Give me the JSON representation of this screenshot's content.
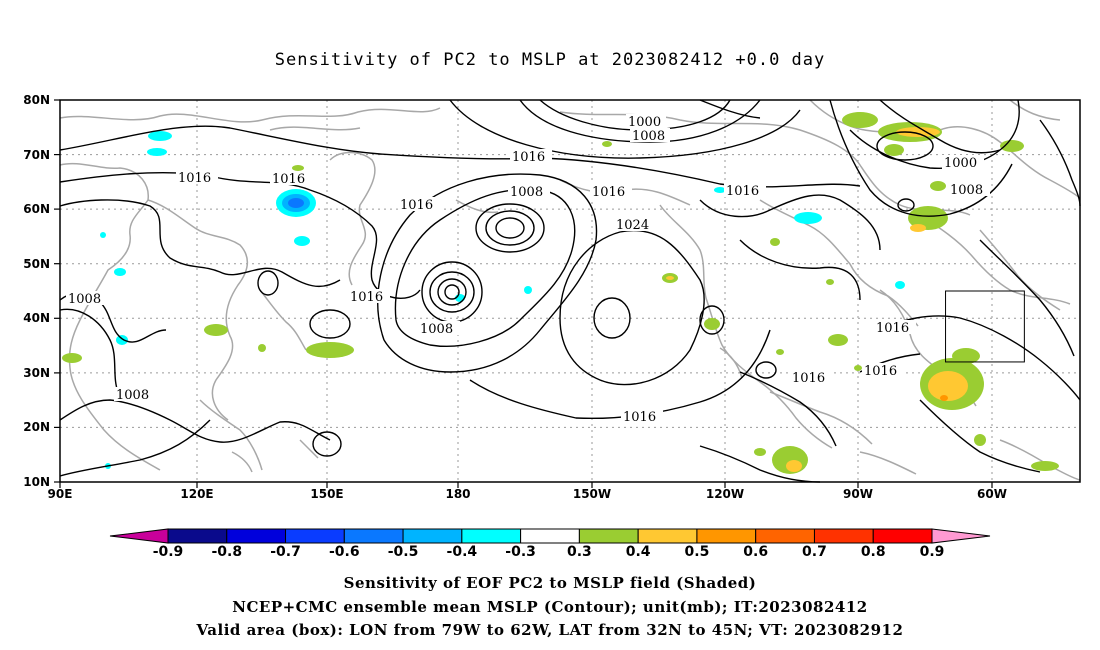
{
  "title": "Sensitivity of PC2 to MSLP at 2023082412 +0.0 day",
  "lat_labels": [
    "80N",
    "70N",
    "60N",
    "50N",
    "40N",
    "30N",
    "20N",
    "10N"
  ],
  "lon_labels": [
    "90E",
    "120E",
    "150E",
    "180",
    "150W",
    "120W",
    "90W",
    "60W"
  ],
  "contour_labels": [
    {
      "text": "1000"
    },
    {
      "text": "1008"
    },
    {
      "text": "1016"
    },
    {
      "text": "1016"
    },
    {
      "text": "1016"
    },
    {
      "text": "1008"
    },
    {
      "text": "1016"
    },
    {
      "text": "1024"
    },
    {
      "text": "1016"
    },
    {
      "text": "1000"
    },
    {
      "text": "1008"
    },
    {
      "text": "1016"
    },
    {
      "text": "1008"
    },
    {
      "text": "1016"
    },
    {
      "text": "1008"
    },
    {
      "text": "1016"
    },
    {
      "text": "1008"
    },
    {
      "text": "1016"
    },
    {
      "text": "1016"
    },
    {
      "text": "1016"
    }
  ],
  "colorbar": {
    "labels": [
      "-0.9",
      "-0.8",
      "-0.7",
      "-0.6",
      "-0.5",
      "-0.4",
      "-0.3",
      "0.3",
      "0.4",
      "0.5",
      "0.6",
      "0.7",
      "0.8",
      "0.9"
    ],
    "colors": [
      "#0a0a8c",
      "#0000dc",
      "#0a3cff",
      "#0a78ff",
      "#00b4ff",
      "#00ffff",
      "#ffffff",
      "#9acd32",
      "#ffc832",
      "#ff9600",
      "#ff6400",
      "#ff3200",
      "#ff0000"
    ],
    "low_color": "#c8009a",
    "high_color": "#ff9ad2"
  },
  "valid_box": {
    "lon_w": -79,
    "lon_e": -62,
    "lat_s": 32,
    "lat_n": 45
  },
  "captions": [
    "Sensitivity of EOF PC2 to MSLP field (Shaded)",
    "NCEP+CMC ensemble mean MSLP (Contour); unit(mb); IT:2023082412",
    "Valid area (box): LON from 79W to 62W, LAT from 32N to 45N; VT: 2023082912"
  ]
}
